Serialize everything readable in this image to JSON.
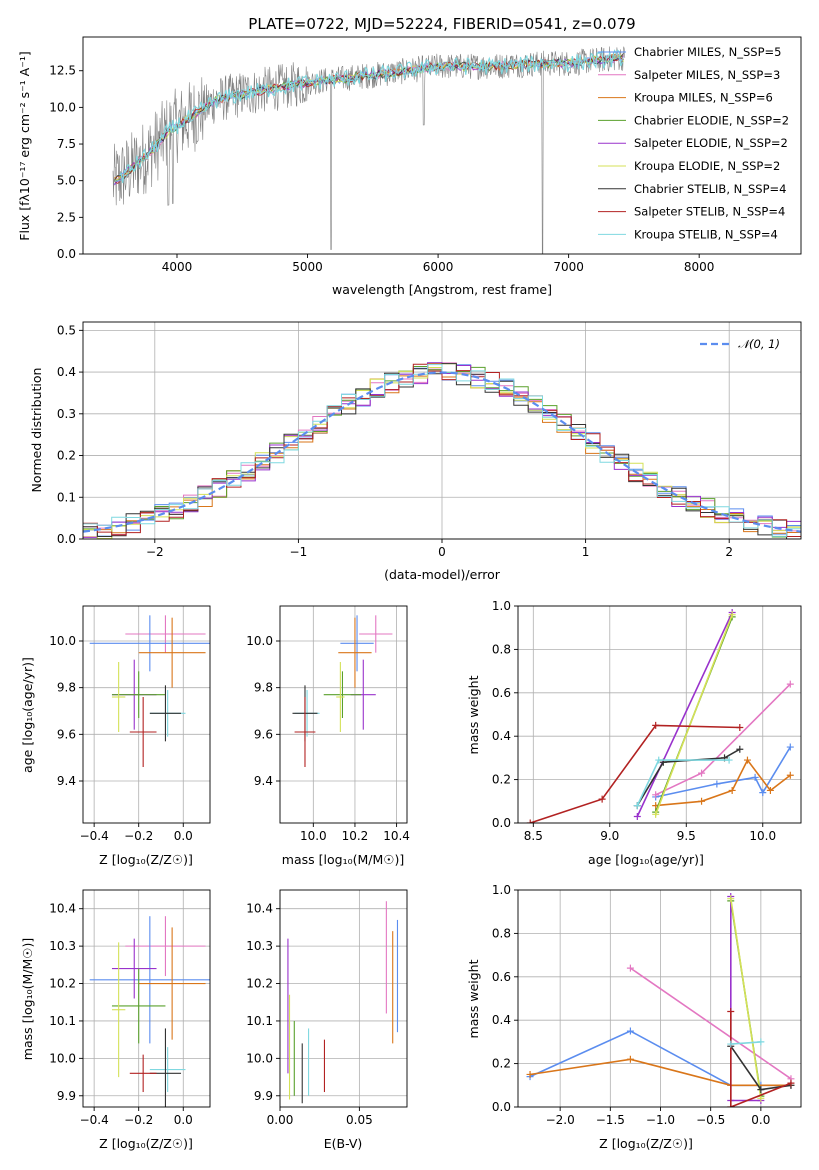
{
  "chart_data": [
    {
      "id": "spectrum",
      "type": "line",
      "title": "PLATE=0722, MJD=52224, FIBERID=0541, z=0.079",
      "xlabel": "wavelength [Angstrom, rest frame]",
      "ylabel": "Flux [fλ10⁻¹⁷ erg cm⁻² s⁻¹ A⁻¹]",
      "xlim": [
        3280,
        8780
      ],
      "ylim": [
        0,
        14.8
      ],
      "xticks": [
        4000,
        5000,
        6000,
        7000,
        8000
      ],
      "yticks": [
        0.0,
        2.5,
        5.0,
        7.5,
        10.0,
        12.5
      ],
      "xtick_labels": [
        "4000",
        "5000",
        "6000",
        "7000",
        "8000"
      ],
      "ytick_labels": [
        "0.0",
        "2.5",
        "5.0",
        "7.5",
        "10.0",
        "12.5"
      ],
      "legend_position": "right",
      "legend": [
        {
          "name": "Chabrier MILES, N_SSP=5",
          "color": "#5b8def"
        },
        {
          "name": "Salpeter MILES, N_SSP=3",
          "color": "#e377c2"
        },
        {
          "name": "Kroupa MILES, N_SSP=6",
          "color": "#d9761a"
        },
        {
          "name": "Chabrier ELODIE, N_SSP=2",
          "color": "#5aa02c"
        },
        {
          "name": "Salpeter ELODIE, N_SSP=2",
          "color": "#9932cc"
        },
        {
          "name": "Kroupa ELODIE, N_SSP=2",
          "color": "#d4e157"
        },
        {
          "name": "Chabrier STELIB, N_SSP=4",
          "color": "#333333"
        },
        {
          "name": "Salpeter STELIB, N_SSP=4",
          "color": "#b22222"
        },
        {
          "name": "Kroupa STELIB, N_SSP=4",
          "color": "#7fd8e0"
        }
      ],
      "continuum": {
        "x": [
          3500,
          3650,
          3800,
          3950,
          4100,
          4300,
          4500,
          4800,
          5000,
          5300,
          5600,
          6000,
          6400,
          6800,
          7000,
          7200,
          7430
        ],
        "y": [
          4.8,
          5.8,
          7.0,
          8.5,
          9.3,
          10.5,
          10.9,
          11.4,
          11.7,
          12.0,
          12.3,
          12.8,
          12.8,
          13.0,
          13.0,
          13.2,
          13.4
        ]
      }
    },
    {
      "id": "residuals",
      "type": "histogram",
      "xlabel": "(data-model)/error",
      "ylabel": "Normed distribution",
      "xlim": [
        -2.5,
        2.5
      ],
      "ylim": [
        0,
        0.52
      ],
      "xticks": [
        -2,
        -1,
        0,
        1,
        2
      ],
      "xtick_labels": [
        "−2",
        "−1",
        "0",
        "1",
        "2"
      ],
      "yticks": [
        0.0,
        0.1,
        0.2,
        0.3,
        0.4,
        0.5
      ],
      "ytick_labels": [
        "0.0",
        "0.1",
        "0.2",
        "0.3",
        "0.4",
        "0.5"
      ],
      "legend_label": "𝒩(0, 1)",
      "legend_position": "top-right",
      "gaussian_color": "#5b8def"
    },
    {
      "id": "age-vs-Z",
      "type": "errorbar",
      "xlabel": "Z [log₁₀(Z/Z☉)]",
      "ylabel": "age  [log₁₀(age/yr)]",
      "xlim": [
        -0.45,
        0.12
      ],
      "ylim": [
        9.22,
        10.15
      ],
      "xticks": [
        -0.4,
        -0.2,
        0.0
      ],
      "xtick_labels": [
        "−0.4",
        "−0.2",
        "0.0"
      ],
      "yticks": [
        9.4,
        9.6,
        9.8,
        10.0
      ],
      "ytick_labels": [
        "9.4",
        "9.6",
        "9.8",
        "10.0"
      ],
      "points": [
        {
          "x": -0.08,
          "y": 10.03,
          "xerr": 0.18,
          "yerr": 0.08,
          "color": "#e377c2"
        },
        {
          "x": -0.15,
          "y": 9.99,
          "xerr": 0.27,
          "yerr": 0.12,
          "color": "#5b8def"
        },
        {
          "x": -0.05,
          "y": 9.95,
          "xerr": 0.15,
          "yerr": 0.15,
          "color": "#d9761a"
        },
        {
          "x": -0.22,
          "y": 9.77,
          "xerr": 0.1,
          "yerr": 0.15,
          "color": "#9932cc"
        },
        {
          "x": -0.2,
          "y": 9.77,
          "xerr": 0.12,
          "yerr": 0.1,
          "color": "#5aa02c"
        },
        {
          "x": -0.29,
          "y": 9.76,
          "xerr": 0.03,
          "yerr": 0.15,
          "color": "#d4e157"
        },
        {
          "x": -0.07,
          "y": 9.69,
          "xerr": 0.08,
          "yerr": 0.1,
          "color": "#7fd8e0"
        },
        {
          "x": -0.08,
          "y": 9.69,
          "xerr": 0.07,
          "yerr": 0.12,
          "color": "#333333"
        },
        {
          "x": -0.18,
          "y": 9.61,
          "xerr": 0.06,
          "yerr": 0.15,
          "color": "#b22222"
        }
      ]
    },
    {
      "id": "age-vs-mass",
      "type": "errorbar",
      "xlabel": "mass [log₁₀(M/M☉)]",
      "xlim": [
        9.84,
        10.45
      ],
      "ylim": [
        9.22,
        10.15
      ],
      "xticks": [
        10.0,
        10.2,
        10.4
      ],
      "xtick_labels": [
        "10.0",
        "10.2",
        "10.4"
      ],
      "yticks": [
        9.4,
        9.6,
        9.8,
        10.0
      ],
      "ytick_labels": [
        "9.4",
        "9.6",
        "9.8",
        "10.0"
      ],
      "points": [
        {
          "x": 10.3,
          "y": 10.03,
          "xerr": 0.08,
          "yerr": 0.08,
          "color": "#e377c2"
        },
        {
          "x": 10.21,
          "y": 9.99,
          "xerr": 0.08,
          "yerr": 0.12,
          "color": "#5b8def"
        },
        {
          "x": 10.2,
          "y": 9.95,
          "xerr": 0.08,
          "yerr": 0.15,
          "color": "#d9761a"
        },
        {
          "x": 10.24,
          "y": 9.77,
          "xerr": 0.06,
          "yerr": 0.15,
          "color": "#9932cc"
        },
        {
          "x": 10.14,
          "y": 9.77,
          "xerr": 0.09,
          "yerr": 0.1,
          "color": "#5aa02c"
        },
        {
          "x": 10.13,
          "y": 9.76,
          "xerr": 0.02,
          "yerr": 0.15,
          "color": "#d4e157"
        },
        {
          "x": 9.97,
          "y": 9.69,
          "xerr": 0.06,
          "yerr": 0.1,
          "color": "#7fd8e0"
        },
        {
          "x": 9.96,
          "y": 9.69,
          "xerr": 0.06,
          "yerr": 0.12,
          "color": "#333333"
        },
        {
          "x": 9.96,
          "y": 9.61,
          "xerr": 0.05,
          "yerr": 0.15,
          "color": "#b22222"
        }
      ]
    },
    {
      "id": "massweight-vs-age",
      "type": "line",
      "xlabel": "age  [log₁₀(age/yr)]",
      "ylabel": "mass weight",
      "xlim": [
        8.4,
        10.25
      ],
      "ylim": [
        0,
        1.0
      ],
      "xticks": [
        8.5,
        9.0,
        9.5,
        10.0
      ],
      "xtick_labels": [
        "8.5",
        "9.0",
        "9.5",
        "10.0"
      ],
      "yticks": [
        0.0,
        0.2,
        0.4,
        0.6,
        0.8,
        1.0
      ],
      "ytick_labels": [
        "0.0",
        "0.2",
        "0.4",
        "0.6",
        "0.8",
        "1.0"
      ],
      "series": [
        {
          "color": "#5b8def",
          "x": [
            9.3,
            9.7,
            9.95,
            10.0,
            10.18
          ],
          "y": [
            0.12,
            0.18,
            0.21,
            0.14,
            0.35
          ]
        },
        {
          "color": "#e377c2",
          "x": [
            9.3,
            9.6,
            10.18
          ],
          "y": [
            0.13,
            0.23,
            0.64
          ]
        },
        {
          "color": "#d9761a",
          "x": [
            9.3,
            9.6,
            9.8,
            9.9,
            10.05,
            10.18
          ],
          "y": [
            0.08,
            0.1,
            0.15,
            0.29,
            0.15,
            0.22
          ]
        },
        {
          "color": "#5aa02c",
          "x": [
            9.3,
            9.8
          ],
          "y": [
            0.05,
            0.95
          ]
        },
        {
          "color": "#9932cc",
          "x": [
            9.18,
            9.8
          ],
          "y": [
            0.03,
            0.97
          ]
        },
        {
          "color": "#d4e157",
          "x": [
            9.3,
            9.8
          ],
          "y": [
            0.04,
            0.96
          ]
        },
        {
          "color": "#333333",
          "x": [
            9.18,
            9.35,
            9.75,
            9.85
          ],
          "y": [
            0.08,
            0.28,
            0.3,
            0.34
          ]
        },
        {
          "color": "#b22222",
          "x": [
            8.48,
            8.95,
            9.3,
            9.85
          ],
          "y": [
            0.0,
            0.11,
            0.45,
            0.44
          ]
        },
        {
          "color": "#7fd8e0",
          "x": [
            9.18,
            9.32,
            9.78
          ],
          "y": [
            0.08,
            0.29,
            0.29
          ]
        }
      ]
    },
    {
      "id": "mass-vs-Z",
      "type": "errorbar",
      "xlabel": "Z [log₁₀(Z/Z☉)]",
      "ylabel": "mass [log₁₀(M/M☉)]",
      "xlim": [
        -0.45,
        0.12
      ],
      "ylim": [
        9.87,
        10.45
      ],
      "xticks": [
        -0.4,
        -0.2,
        0.0
      ],
      "xtick_labels": [
        "−0.4",
        "−0.2",
        "0.0"
      ],
      "yticks": [
        9.9,
        10.0,
        10.1,
        10.2,
        10.3,
        10.4
      ],
      "ytick_labels": [
        "9.9",
        "10.0",
        "10.1",
        "10.2",
        "10.3",
        "10.4"
      ],
      "points": [
        {
          "x": -0.08,
          "y": 10.3,
          "xerr": 0.18,
          "yerr": 0.08,
          "color": "#e377c2"
        },
        {
          "x": -0.15,
          "y": 10.21,
          "xerr": 0.27,
          "yerr": 0.17,
          "color": "#5b8def"
        },
        {
          "x": -0.05,
          "y": 10.2,
          "xerr": 0.15,
          "yerr": 0.15,
          "color": "#d9761a"
        },
        {
          "x": -0.22,
          "y": 10.24,
          "xerr": 0.1,
          "yerr": 0.08,
          "color": "#9932cc"
        },
        {
          "x": -0.2,
          "y": 10.14,
          "xerr": 0.12,
          "yerr": 0.1,
          "color": "#5aa02c"
        },
        {
          "x": -0.29,
          "y": 10.13,
          "xerr": 0.03,
          "yerr": 0.18,
          "color": "#d4e157"
        },
        {
          "x": -0.07,
          "y": 9.97,
          "xerr": 0.08,
          "yerr": 0.06,
          "color": "#7fd8e0"
        },
        {
          "x": -0.08,
          "y": 9.96,
          "xerr": 0.07,
          "yerr": 0.12,
          "color": "#333333"
        },
        {
          "x": -0.18,
          "y": 9.96,
          "xerr": 0.06,
          "yerr": 0.05,
          "color": "#b22222"
        }
      ]
    },
    {
      "id": "mass-vs-ebv",
      "type": "errorbar",
      "xlabel": "E(B-V)",
      "xlim": [
        0.0,
        0.08
      ],
      "ylim": [
        9.87,
        10.45
      ],
      "xticks": [
        0.0,
        0.05
      ],
      "xtick_labels": [
        "0.00",
        "0.05"
      ],
      "yticks": [
        9.9,
        10.0,
        10.1,
        10.2,
        10.3,
        10.4
      ],
      "ytick_labels": [
        "9.9",
        "10.0",
        "10.1",
        "10.2",
        "10.3",
        "10.4"
      ],
      "points": [
        {
          "x": 0.005,
          "y": 10.14,
          "yerr": 0.18,
          "color": "#9932cc"
        },
        {
          "x": 0.006,
          "y": 10.03,
          "yerr": 0.14,
          "color": "#d4e157"
        },
        {
          "x": 0.009,
          "y": 10.0,
          "yerr": 0.1,
          "color": "#5aa02c"
        },
        {
          "x": 0.014,
          "y": 9.96,
          "yerr": 0.08,
          "color": "#333333"
        },
        {
          "x": 0.018,
          "y": 9.99,
          "yerr": 0.09,
          "color": "#7fd8e0"
        },
        {
          "x": 0.028,
          "y": 9.98,
          "yerr": 0.07,
          "color": "#b22222"
        },
        {
          "x": 0.067,
          "y": 10.27,
          "yerr": 0.15,
          "color": "#e377c2"
        },
        {
          "x": 0.071,
          "y": 10.19,
          "yerr": 0.15,
          "color": "#d9761a"
        },
        {
          "x": 0.074,
          "y": 10.22,
          "yerr": 0.15,
          "color": "#5b8def"
        }
      ]
    },
    {
      "id": "massweight-vs-Z",
      "type": "line",
      "xlabel": "Z [log₁₀(Z/Z☉)]",
      "ylabel": "mass weight",
      "xlim": [
        -2.42,
        0.4
      ],
      "ylim": [
        0,
        1.0
      ],
      "xticks": [
        -2.0,
        -1.5,
        -1.0,
        -0.5,
        0.0
      ],
      "xtick_labels": [
        "−2.0",
        "−1.5",
        "−1.0",
        "−0.5",
        "0.0"
      ],
      "yticks": [
        0.0,
        0.2,
        0.4,
        0.6,
        0.8,
        1.0
      ],
      "ytick_labels": [
        "0.0",
        "0.2",
        "0.4",
        "0.6",
        "0.8",
        "1.0"
      ],
      "series": [
        {
          "color": "#5b8def",
          "x": [
            -2.3,
            -1.3,
            -0.3,
            0.0,
            0.3
          ],
          "y": [
            0.14,
            0.35,
            0.1,
            0.1,
            0.1
          ]
        },
        {
          "color": "#e377c2",
          "x": [
            -1.3,
            0.3
          ],
          "y": [
            0.64,
            0.13
          ]
        },
        {
          "color": "#d9761a",
          "x": [
            -2.3,
            -1.3,
            -0.3,
            0.3
          ],
          "y": [
            0.15,
            0.22,
            0.1,
            0.1
          ]
        },
        {
          "color": "#5aa02c",
          "x": [
            -0.3,
            0.0
          ],
          "y": [
            0.95,
            0.05
          ]
        },
        {
          "color": "#9932cc",
          "x": [
            -0.3,
            -0.3,
            0.0
          ],
          "y": [
            0.97,
            0.03,
            0.03
          ]
        },
        {
          "color": "#d4e157",
          "x": [
            -0.3,
            0.0
          ],
          "y": [
            0.96,
            0.04
          ]
        },
        {
          "color": "#333333",
          "x": [
            -0.3,
            0.0,
            0.3
          ],
          "y": [
            0.28,
            0.08,
            0.1
          ]
        },
        {
          "color": "#b22222",
          "x": [
            -0.3,
            -0.3,
            0.3
          ],
          "y": [
            0.44,
            0.0,
            0.11
          ]
        },
        {
          "color": "#7fd8e0",
          "x": [
            -0.3,
            0.0
          ],
          "y": [
            0.29,
            0.3
          ]
        }
      ]
    }
  ]
}
